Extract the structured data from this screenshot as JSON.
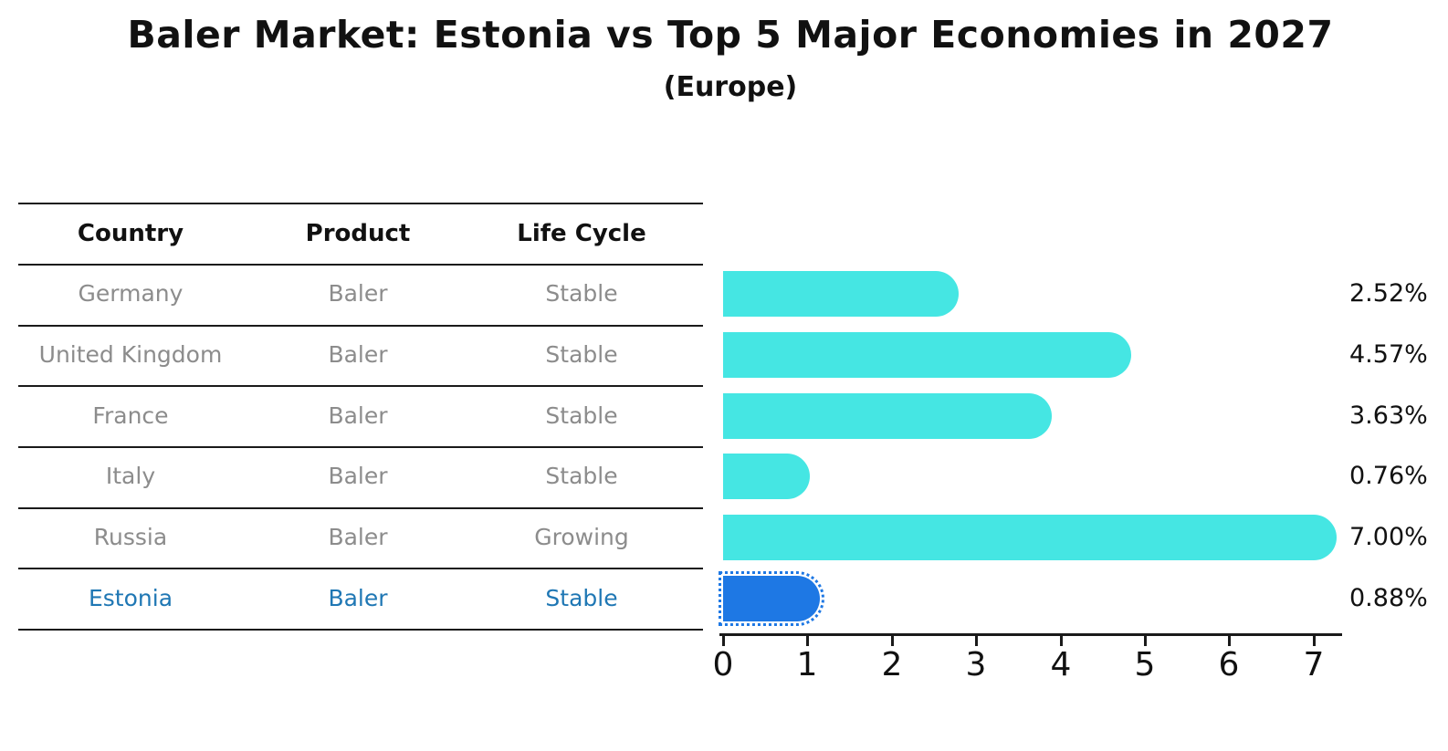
{
  "header": {
    "title": "Baler Market: Estonia vs Top 5 Major Economies in 2027",
    "subtitle": "(Europe)"
  },
  "table": {
    "headers": [
      "Country",
      "Product",
      "Life Cycle"
    ],
    "rows": [
      {
        "country": "Germany",
        "product": "Baler",
        "life_cycle": "Stable",
        "highlighted": false
      },
      {
        "country": "United Kingdom",
        "product": "Baler",
        "life_cycle": "Stable",
        "highlighted": false
      },
      {
        "country": "France",
        "product": "Baler",
        "life_cycle": "Stable",
        "highlighted": false
      },
      {
        "country": "Italy",
        "product": "Baler",
        "life_cycle": "Stable",
        "highlighted": false
      },
      {
        "country": "Russia",
        "product": "Baler",
        "life_cycle": "Growing",
        "highlighted": false
      },
      {
        "country": "Estonia",
        "product": "Baler",
        "life_cycle": "Stable",
        "highlighted": true
      }
    ]
  },
  "chart_data": {
    "type": "bar",
    "orientation": "horizontal",
    "title": "Baler Market: Estonia vs Top 5 Major Economies in 2027",
    "subtitle": "(Europe)",
    "categories": [
      "Germany",
      "United Kingdom",
      "France",
      "Italy",
      "Russia",
      "Estonia"
    ],
    "values": [
      2.52,
      4.57,
      3.63,
      0.76,
      7.0,
      0.88
    ],
    "value_labels": [
      "2.52%",
      "4.57%",
      "3.63%",
      "0.76%",
      "7.00%",
      "0.88%"
    ],
    "xlabel": "",
    "ylabel": "",
    "xlim": [
      0,
      7.35
    ],
    "x_ticks": [
      0,
      1,
      2,
      3,
      4,
      5,
      6,
      7
    ],
    "grid": false,
    "legend": false,
    "bar_color": "#45e6e3",
    "highlight_index": 5,
    "highlight_bar_color": "#1e78e4",
    "highlight_bar_style": "dotted-outline"
  },
  "colors": {
    "text": "#111111",
    "muted_row_text": "#8c8c8c",
    "highlight_text": "#1f77b4",
    "table_line": "#1a1a1a"
  }
}
